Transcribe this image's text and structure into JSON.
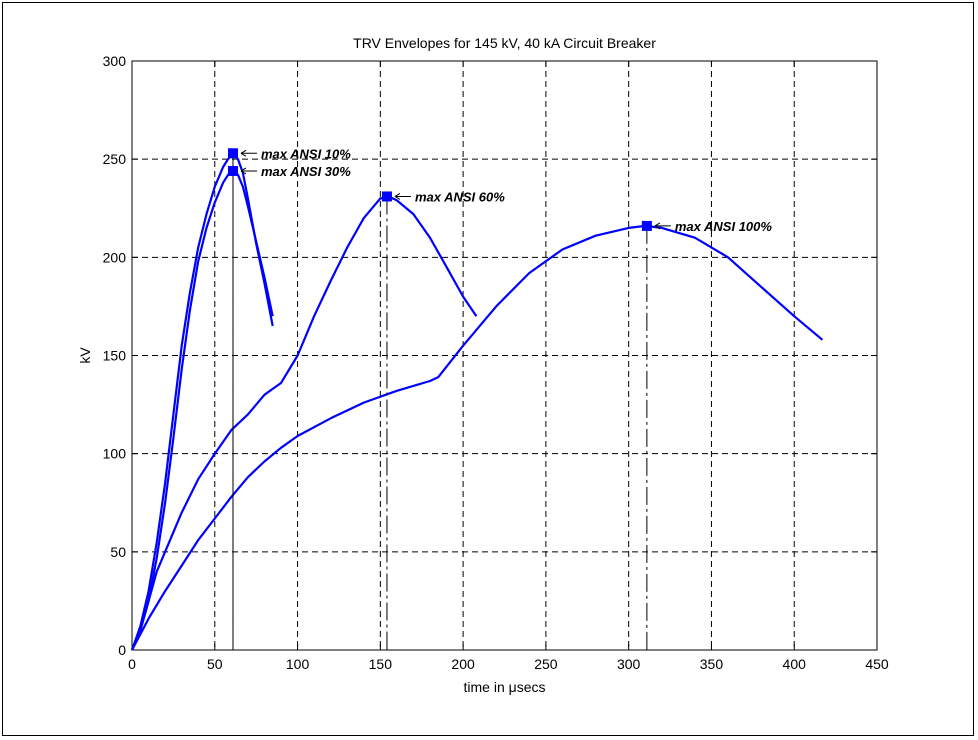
{
  "chart_data": {
    "type": "line",
    "title": "TRV Envelopes for 145 kV, 40 kA Circuit Breaker",
    "xlabel": "time in μsecs",
    "ylabel": "kV",
    "xlim": [
      0,
      450
    ],
    "ylim": [
      0,
      300
    ],
    "xticks": [
      0,
      50,
      100,
      150,
      200,
      250,
      300,
      350,
      400,
      450
    ],
    "yticks": [
      0,
      50,
      100,
      150,
      200,
      250,
      300
    ],
    "grid": true,
    "line_color": "#0000ff",
    "series": [
      {
        "x": [
          0,
          5,
          10,
          15,
          20,
          25,
          30,
          35,
          40,
          45,
          50,
          55,
          58,
          61,
          64,
          67,
          70,
          75,
          80,
          85
        ],
        "values": [
          0,
          12,
          30,
          55,
          85,
          120,
          155,
          182,
          205,
          222,
          236,
          246,
          250,
          253,
          250,
          243,
          230,
          207,
          187,
          165
        ],
        "marker": {
          "x": 61,
          "y": 253,
          "label": "max ANSI 10%"
        }
      },
      {
        "x": [
          0,
          5,
          10,
          15,
          20,
          25,
          30,
          35,
          40,
          45,
          50,
          55,
          58,
          61,
          64,
          67,
          70,
          75,
          80,
          85
        ],
        "values": [
          0,
          10,
          25,
          47,
          75,
          108,
          143,
          173,
          198,
          215,
          228,
          238,
          242,
          244,
          242,
          236,
          226,
          208,
          190,
          170
        ],
        "marker": {
          "x": 61,
          "y": 244,
          "label": "max ANSI 30%"
        }
      },
      {
        "x": [
          0,
          5,
          10,
          15,
          20,
          30,
          40,
          50,
          60,
          70,
          75,
          80,
          85,
          90,
          100,
          110,
          120,
          130,
          140,
          150,
          155,
          160,
          170,
          180,
          190,
          200,
          208
        ],
        "values": [
          0,
          10,
          25,
          40,
          50,
          70,
          87,
          100,
          112,
          120,
          125,
          130,
          133,
          136,
          150,
          170,
          188,
          205,
          220,
          230,
          231,
          229,
          222,
          210,
          195,
          180,
          170
        ],
        "marker": {
          "x": 154,
          "y": 231,
          "label": "max ANSI 60%"
        }
      },
      {
        "x": [
          0,
          5,
          10,
          20,
          30,
          40,
          50,
          60,
          70,
          80,
          90,
          100,
          120,
          140,
          160,
          180,
          185,
          200,
          220,
          240,
          260,
          280,
          300,
          310,
          320,
          340,
          360,
          380,
          400,
          417
        ],
        "values": [
          0,
          8,
          16,
          30,
          43,
          56,
          67,
          78,
          88,
          96,
          103,
          109,
          118,
          126,
          132,
          137,
          139,
          155,
          175,
          192,
          204,
          211,
          215,
          216,
          215,
          210,
          200,
          185,
          170,
          158
        ],
        "marker": {
          "x": 311,
          "y": 216,
          "label": "max ANSI 100%"
        }
      }
    ]
  }
}
